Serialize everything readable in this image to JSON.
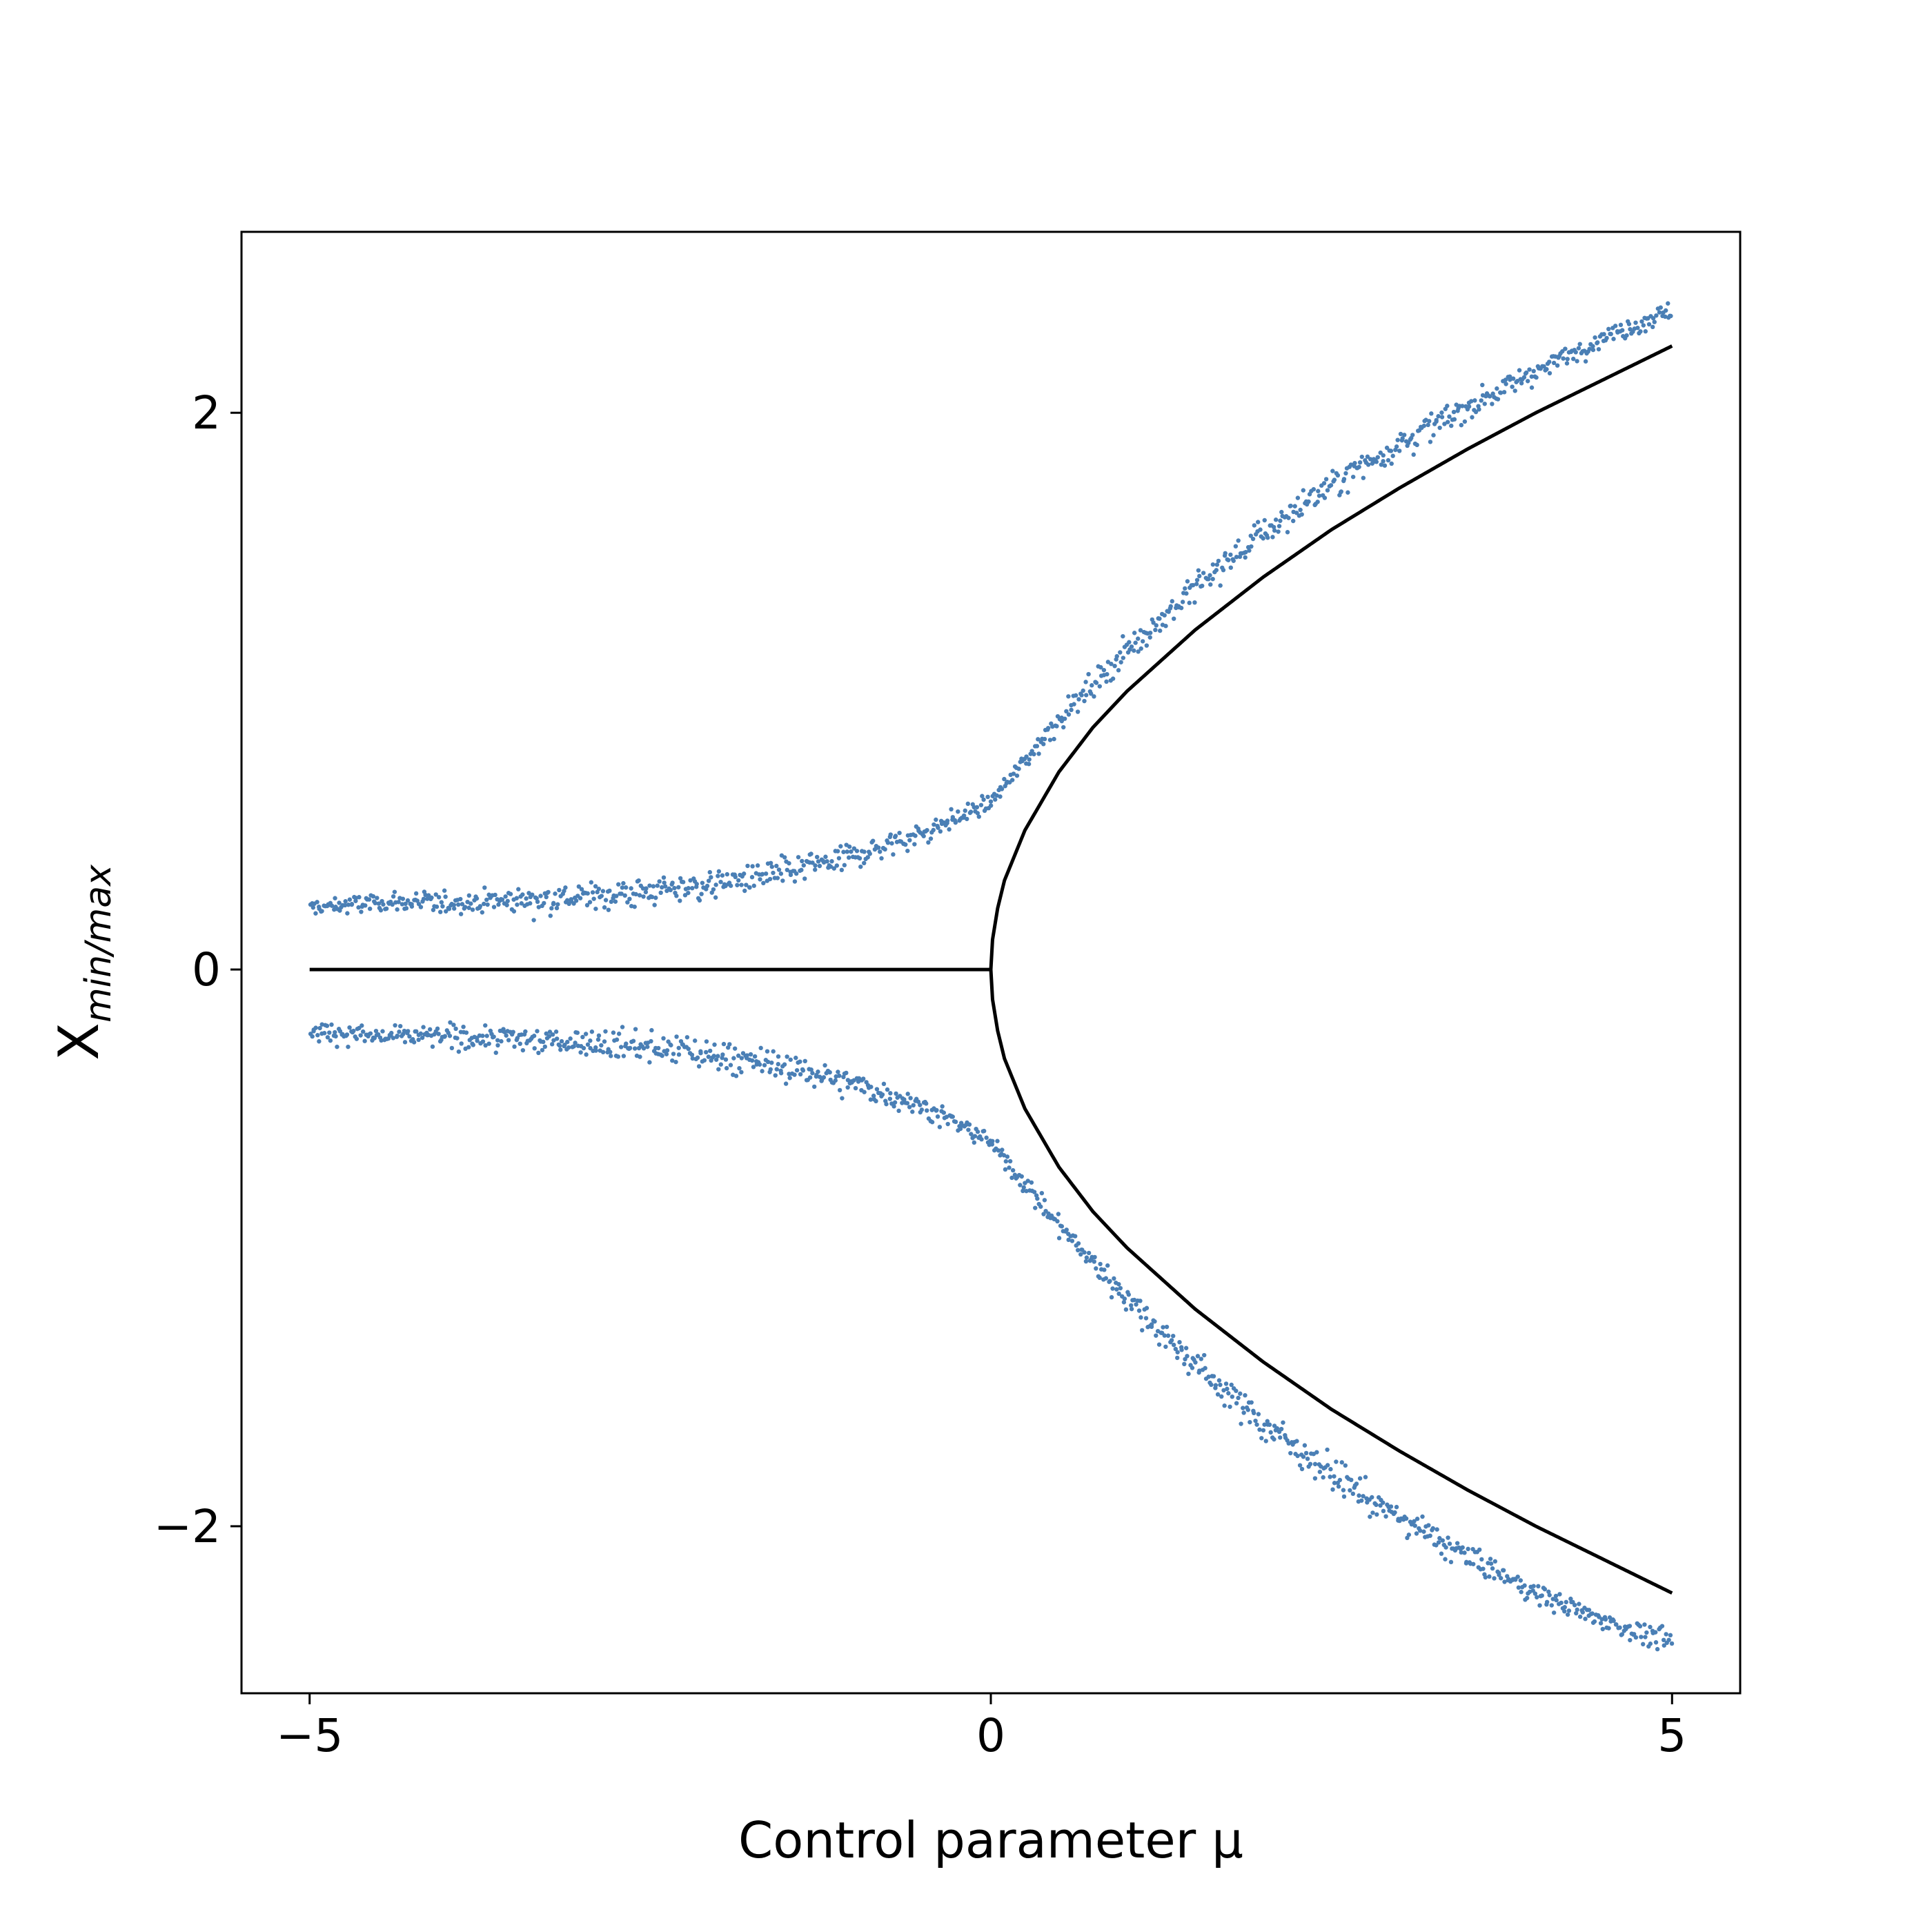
{
  "chart_data": {
    "type": "scatter",
    "title": "",
    "xlabel": "Control parameter μ",
    "ylabel": {
      "base": "X",
      "subscript": "min/max"
    },
    "xlim": [
      -5.5,
      5.5
    ],
    "ylim": [
      -2.6,
      2.65
    ],
    "xticks": [
      -5,
      0,
      5
    ],
    "xtick_labels": [
      "−5",
      "0",
      "5"
    ],
    "yticks": [
      -2,
      0,
      2
    ],
    "ytick_labels": [
      "−2",
      "0",
      "2"
    ],
    "grid": false,
    "legend": "none",
    "series": [
      {
        "role": "analytic branches (black)",
        "color": "#000000",
        "segments": [
          {
            "x": [
              -5,
              -4,
              -3,
              -2,
              -1,
              0
            ],
            "y": [
              0,
              0,
              0,
              0,
              0,
              0
            ]
          },
          {
            "x": [
              0,
              0.01,
              0.05,
              0.1,
              0.25,
              0.5,
              0.75,
              1,
              1.5,
              2,
              2.5,
              3,
              3.5,
              4,
              4.5,
              5
            ],
            "y": [
              0,
              0.1,
              0.22,
              0.32,
              0.5,
              0.71,
              0.87,
              1.0,
              1.22,
              1.41,
              1.58,
              1.73,
              1.87,
              2.0,
              2.12,
              2.24
            ]
          },
          {
            "x": [
              0,
              0.01,
              0.05,
              0.1,
              0.25,
              0.5,
              0.75,
              1,
              1.5,
              2,
              2.5,
              3,
              3.5,
              4,
              4.5,
              5
            ],
            "y": [
              0,
              -0.1,
              -0.22,
              -0.32,
              -0.5,
              -0.71,
              -0.87,
              -1.0,
              -1.22,
              -1.41,
              -1.58,
              -1.73,
              -1.87,
              -2.0,
              -2.12,
              -2.24
            ]
          }
        ]
      },
      {
        "role": "noisy maxima (blue)",
        "color": "#4a7fb5",
        "x": [
          -5,
          -4.5,
          -4,
          -3.5,
          -3,
          -2.5,
          -2,
          -1.5,
          -1,
          -0.5,
          0,
          0.5,
          1,
          1.5,
          2,
          2.5,
          3,
          3.5,
          4,
          4.5,
          5
        ],
        "y": [
          0.22,
          0.24,
          0.24,
          0.25,
          0.26,
          0.28,
          0.31,
          0.35,
          0.41,
          0.49,
          0.6,
          0.9,
          1.15,
          1.37,
          1.57,
          1.74,
          1.89,
          2.02,
          2.15,
          2.27,
          2.37
        ]
      },
      {
        "role": "noisy minima (blue)",
        "color": "#4a7fb5",
        "x": [
          -5,
          -4.5,
          -4,
          -3.5,
          -3,
          -2.5,
          -2,
          -1.5,
          -1,
          -0.5,
          0,
          0.5,
          1,
          1.5,
          2,
          2.5,
          3,
          3.5,
          4,
          4.5,
          5
        ],
        "y": [
          -0.22,
          -0.24,
          -0.24,
          -0.25,
          -0.26,
          -0.28,
          -0.31,
          -0.35,
          -0.41,
          -0.49,
          -0.62,
          -0.92,
          -1.18,
          -1.42,
          -1.63,
          -1.81,
          -1.97,
          -2.11,
          -2.24,
          -2.34,
          -2.42
        ]
      }
    ]
  }
}
